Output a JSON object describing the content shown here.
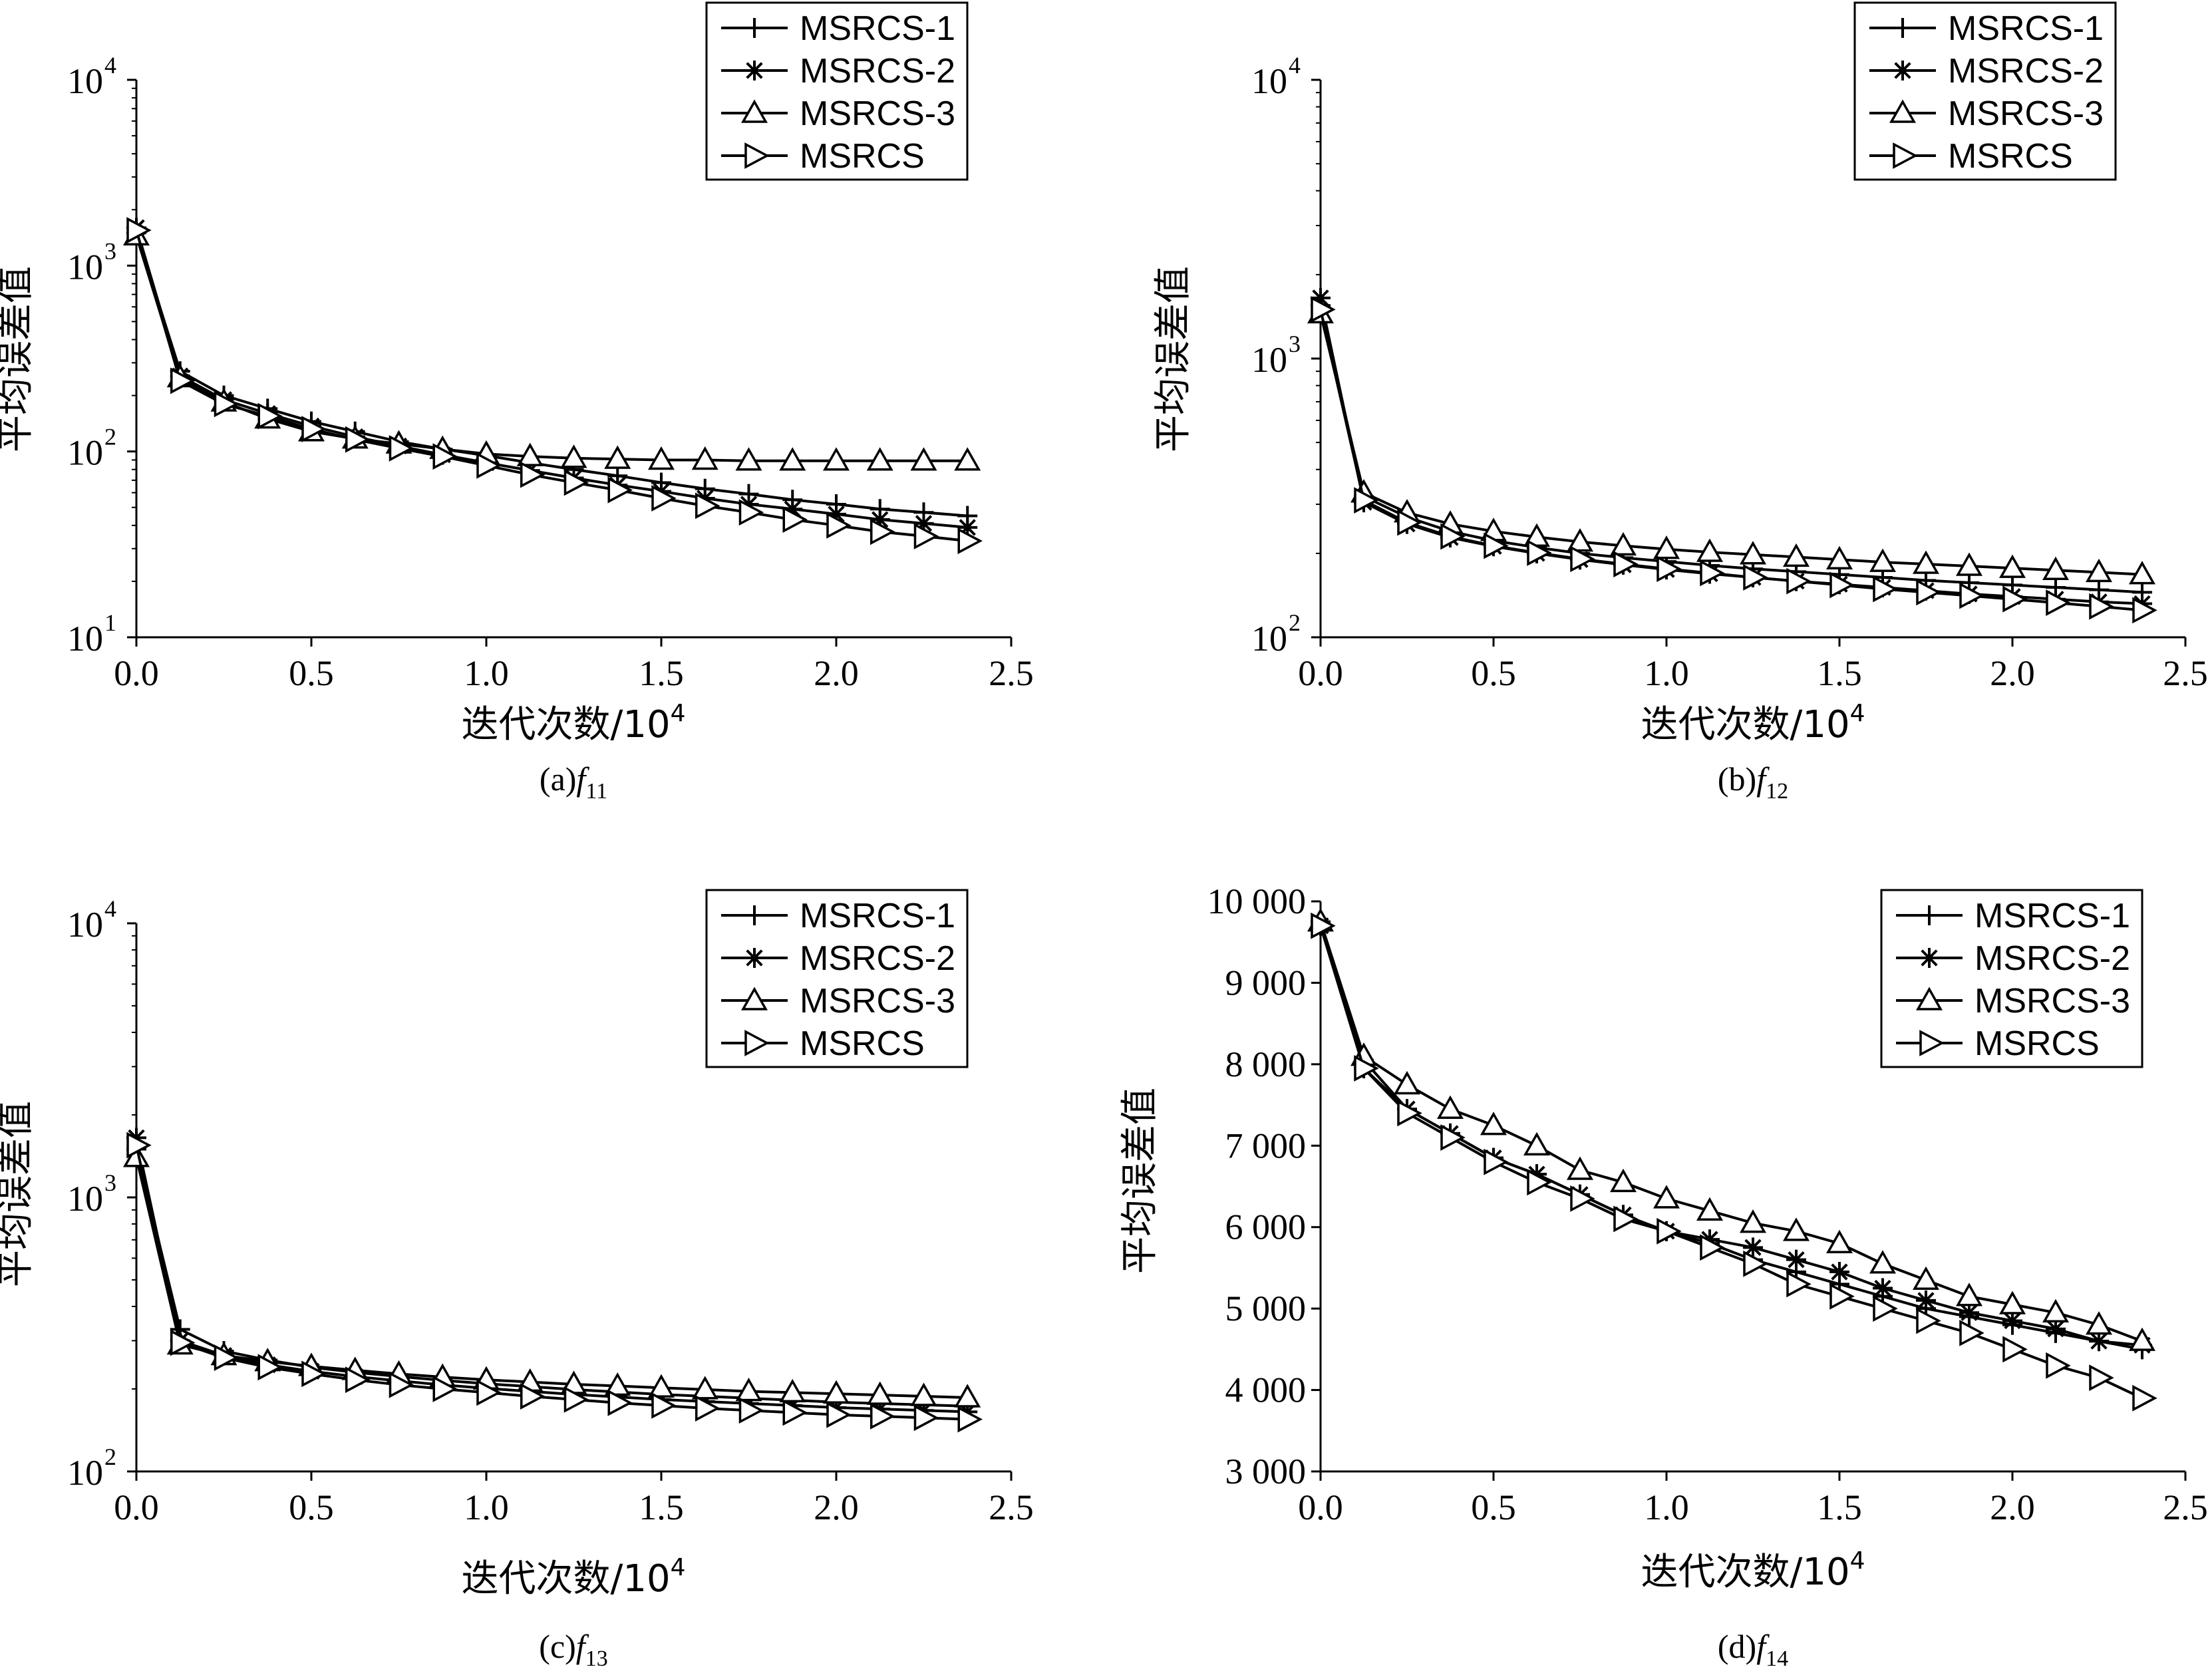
{
  "chart_data": [
    {
      "type": "line",
      "caption": "(a)f11",
      "caption_prefix": "(a)",
      "caption_func": "f",
      "caption_sub": "11",
      "xlabel": "迭代次数/10",
      "xlabel_sup": "4",
      "ylabel": "平均误差值",
      "yscale": "log",
      "ylim": [
        10,
        10000
      ],
      "xlim": [
        0,
        2.5
      ],
      "xticks": [
        "0.0",
        "0.5",
        "1.0",
        "1.5",
        "2.0",
        "2.5"
      ],
      "yticks": [
        {
          "base": "10",
          "exp": "1"
        },
        {
          "base": "10",
          "exp": "2"
        },
        {
          "base": "10",
          "exp": "3"
        },
        {
          "base": "10",
          "exp": "4"
        }
      ],
      "legend_position": "top-right",
      "x": [
        0,
        0.125,
        0.25,
        0.375,
        0.5,
        0.625,
        0.75,
        0.875,
        1.0,
        1.125,
        1.25,
        1.375,
        1.5,
        1.625,
        1.75,
        1.875,
        2.0,
        2.125,
        2.25,
        2.375
      ],
      "series": [
        {
          "name": "MSRCS-1",
          "marker": "plus",
          "values": [
            1500,
            270,
            200,
            170,
            145,
            128,
            113,
            103,
            95,
            87,
            80,
            74,
            68,
            63,
            59,
            55,
            52,
            49,
            47,
            45
          ]
        },
        {
          "name": "MSRCS-2",
          "marker": "star",
          "values": [
            1600,
            255,
            190,
            160,
            137,
            120,
            107,
            96,
            87,
            79,
            72,
            66,
            61,
            56,
            52,
            49,
            46,
            43,
            41,
            39
          ]
        },
        {
          "name": "MSRCS-3",
          "marker": "triangle",
          "values": [
            1450,
            250,
            185,
            150,
            128,
            117,
            110,
            103,
            97,
            94,
            92,
            91,
            90,
            90,
            89,
            89,
            89,
            89,
            89,
            89
          ]
        },
        {
          "name": "MSRCS",
          "marker": "triangle-right",
          "values": [
            1550,
            240,
            180,
            155,
            132,
            116,
            104,
            94,
            84,
            75,
            68,
            62,
            56,
            51,
            47,
            43,
            40,
            37,
            35,
            33
          ]
        }
      ]
    },
    {
      "type": "line",
      "caption": "(b)f12",
      "caption_prefix": "(b)",
      "caption_func": "f",
      "caption_sub": "12",
      "xlabel": "迭代次数/10",
      "xlabel_sup": "4",
      "ylabel": "平均误差值",
      "yscale": "log",
      "ylim": [
        100,
        10000
      ],
      "xlim": [
        0,
        2.5
      ],
      "xticks": [
        "0.0",
        "0.5",
        "1.0",
        "1.5",
        "2.0",
        "2.5"
      ],
      "yticks": [
        {
          "base": "10",
          "exp": "2"
        },
        {
          "base": "10",
          "exp": "3"
        },
        {
          "base": "10",
          "exp": "4"
        }
      ],
      "legend_position": "top-right",
      "x": [
        0,
        0.125,
        0.25,
        0.375,
        0.5,
        0.625,
        0.75,
        0.875,
        1.0,
        1.125,
        1.25,
        1.375,
        1.5,
        1.625,
        1.75,
        1.875,
        2.0,
        2.125,
        2.25,
        2.375
      ],
      "series": [
        {
          "name": "MSRCS-1",
          "marker": "plus",
          "values": [
            1550,
            320,
            270,
            240,
            222,
            210,
            200,
            193,
            187,
            181,
            176,
            172,
            168,
            164,
            160,
            157,
            154,
            151,
            148,
            145
          ]
        },
        {
          "name": "MSRCS-2",
          "marker": "star",
          "values": [
            1650,
            305,
            255,
            228,
            212,
            200,
            190,
            182,
            175,
            169,
            164,
            159,
            155,
            151,
            147,
            143,
            140,
            137,
            134,
            132
          ]
        },
        {
          "name": "MSRCS-3",
          "marker": "triangle",
          "values": [
            1450,
            330,
            280,
            255,
            240,
            229,
            220,
            213,
            207,
            202,
            198,
            194,
            190,
            186,
            183,
            180,
            177,
            174,
            171,
            168
          ]
        },
        {
          "name": "MSRCS",
          "marker": "triangle-right",
          "values": [
            1500,
            310,
            258,
            230,
            213,
            201,
            191,
            183,
            176,
            170,
            164,
            159,
            154,
            149,
            145,
            141,
            137,
            133,
            129,
            125
          ]
        }
      ]
    },
    {
      "type": "line",
      "caption": "(c)f13",
      "caption_prefix": "(c)",
      "caption_func": "f",
      "caption_sub": "13",
      "xlabel": "迭代次数/10",
      "xlabel_sup": "4",
      "ylabel": "平均误差值",
      "yscale": "log",
      "ylim": [
        100,
        10000
      ],
      "xlim": [
        0,
        2.5
      ],
      "xticks": [
        "0.0",
        "0.5",
        "1.0",
        "1.5",
        "2.0",
        "2.5"
      ],
      "yticks": [
        {
          "base": "10",
          "exp": "2"
        },
        {
          "base": "10",
          "exp": "3"
        },
        {
          "base": "10",
          "exp": "4"
        }
      ],
      "legend_position": "top-right",
      "x": [
        0,
        0.125,
        0.25,
        0.375,
        0.5,
        0.625,
        0.75,
        0.875,
        1.0,
        1.125,
        1.25,
        1.375,
        1.5,
        1.625,
        1.75,
        1.875,
        2.0,
        2.125,
        2.25,
        2.375
      ],
      "series": [
        {
          "name": "MSRCS-1",
          "marker": "plus",
          "values": [
            1500,
            330,
            275,
            255,
            240,
            230,
            222,
            215,
            209,
            204,
            199,
            195,
            191,
            188,
            185,
            182,
            179,
            177,
            175,
            173
          ]
        },
        {
          "name": "MSRCS-2",
          "marker": "star",
          "values": [
            1650,
            300,
            265,
            245,
            232,
            222,
            214,
            207,
            201,
            196,
            191,
            187,
            183,
            180,
            177,
            174,
            171,
            169,
            167,
            165
          ]
        },
        {
          "name": "MSRCS-3",
          "marker": "triangle",
          "values": [
            1400,
            290,
            265,
            252,
            242,
            234,
            227,
            221,
            216,
            212,
            208,
            205,
            202,
            199,
            196,
            194,
            192,
            190,
            188,
            186
          ]
        },
        {
          "name": "MSRCS",
          "marker": "triangle-right",
          "values": [
            1550,
            295,
            260,
            240,
            227,
            216,
            207,
            200,
            194,
            188,
            183,
            178,
            174,
            170,
            167,
            164,
            161,
            159,
            157,
            155
          ]
        }
      ]
    },
    {
      "type": "line",
      "caption": "(d)f14",
      "caption_prefix": "(d)",
      "caption_func": "f",
      "caption_sub": "14",
      "xlabel": "迭代次数/10",
      "xlabel_sup": "4",
      "ylabel": "平均误差值",
      "yscale": "linear",
      "ylim": [
        3000,
        10000
      ],
      "xlim": [
        0,
        2.5
      ],
      "xticks": [
        "0.0",
        "0.5",
        "1.0",
        "1.5",
        "2.0",
        "2.5"
      ],
      "yticks_linear": [
        {
          "value": 3000,
          "label": "3 000"
        },
        {
          "value": 4000,
          "label": "4 000"
        },
        {
          "value": 5000,
          "label": "5 000"
        },
        {
          "value": 6000,
          "label": "6 000"
        },
        {
          "value": 7000,
          "label": "7 000"
        },
        {
          "value": 8000,
          "label": "8 000"
        },
        {
          "value": 9000,
          "label": "9 000"
        },
        {
          "value": 10000,
          "label": "10 000"
        }
      ],
      "legend_position": "top-right",
      "x": [
        0,
        0.125,
        0.25,
        0.375,
        0.5,
        0.625,
        0.75,
        0.875,
        1.0,
        1.125,
        1.25,
        1.375,
        1.5,
        1.625,
        1.75,
        1.875,
        2.0,
        2.125,
        2.25,
        2.375
      ],
      "series": [
        {
          "name": "MSRCS-1",
          "marker": "plus",
          "values": [
            9750,
            8050,
            7450,
            7150,
            6850,
            6650,
            6400,
            6150,
            5950,
            5800,
            5600,
            5450,
            5300,
            5150,
            5000,
            4900,
            4800,
            4700,
            4600,
            4500
          ]
        },
        {
          "name": "MSRCS-2",
          "marker": "star",
          "values": [
            9700,
            7950,
            7450,
            7150,
            6850,
            6650,
            6400,
            6150,
            5950,
            5850,
            5750,
            5600,
            5450,
            5250,
            5100,
            4950,
            4850,
            4750,
            4600,
            4550
          ]
        },
        {
          "name": "MSRCS-3",
          "marker": "triangle",
          "values": [
            9750,
            8100,
            7750,
            7450,
            7250,
            7000,
            6700,
            6550,
            6350,
            6200,
            6050,
            5950,
            5800,
            5550,
            5350,
            5150,
            5050,
            4950,
            4800,
            4600
          ]
        },
        {
          "name": "MSRCS",
          "marker": "triangle-right",
          "values": [
            9700,
            7950,
            7400,
            7100,
            6800,
            6550,
            6350,
            6100,
            5950,
            5750,
            5550,
            5300,
            5150,
            5000,
            4850,
            4700,
            4500,
            4300,
            4150,
            3900
          ]
        }
      ]
    }
  ]
}
